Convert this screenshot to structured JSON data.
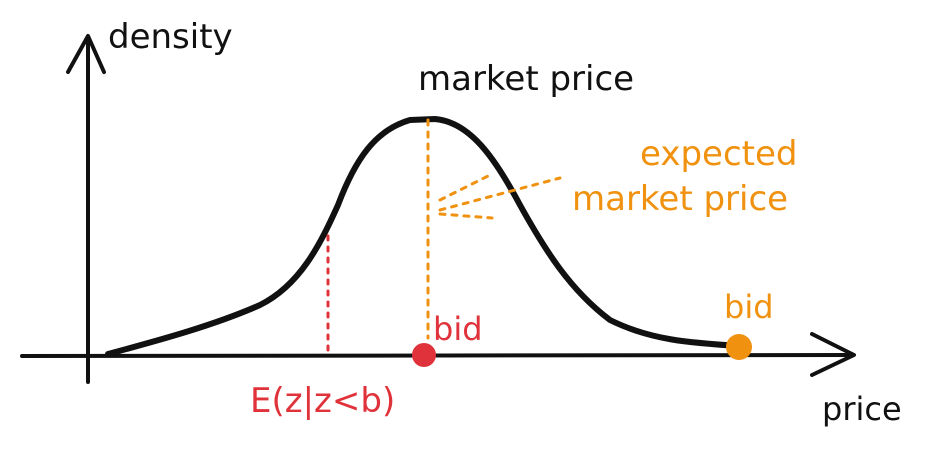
{
  "axes": {
    "y_label": "density",
    "x_label": "price"
  },
  "labels": {
    "market_price": "market price",
    "expected_line1": "expected",
    "expected_line2": "market price",
    "bid_red": "bid",
    "bid_orange": "bid",
    "conditional_expectation": "E(z|z<b)"
  },
  "colors": {
    "curve": "#111111",
    "axis": "#111111",
    "orange": "#f0920f",
    "red": "#e0323a",
    "text": "#111111"
  }
}
